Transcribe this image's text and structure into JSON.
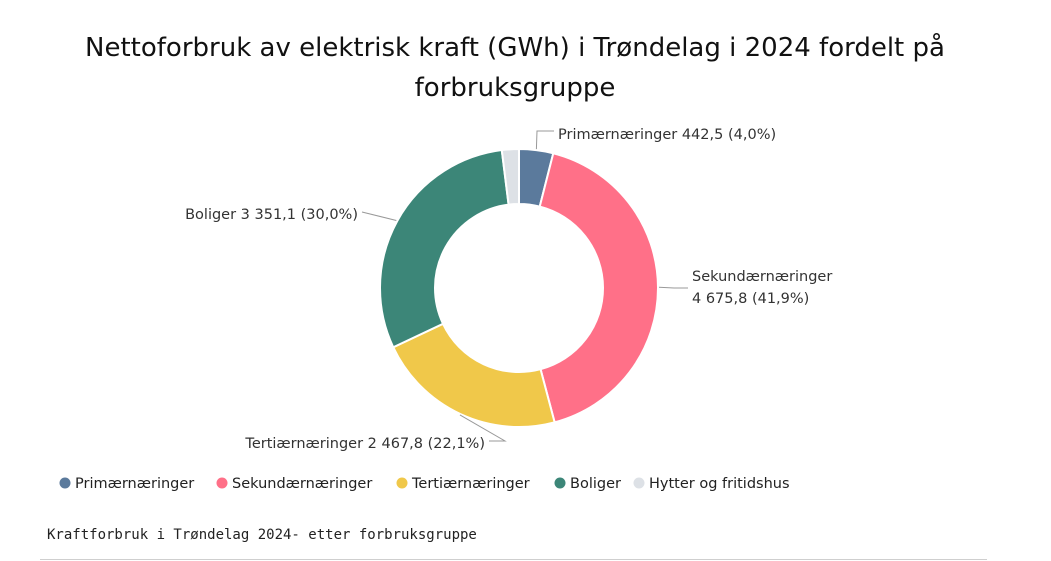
{
  "chart_data": {
    "type": "pie",
    "donut": true,
    "title": "Nettoforbruk av elektrisk kraft (GWh) i Trøndelag i 2024 fordelt på forbruksgruppe",
    "categories": [
      "Primærnæringer",
      "Sekundærnæringer",
      "Tertiærnæringer",
      "Boliger",
      "Hytter og fritidshus"
    ],
    "values": [
      442.5,
      4675.8,
      2467.8,
      3351.1,
      220.4
    ],
    "percentages": [
      4.0,
      41.9,
      22.1,
      30.0,
      2.0
    ],
    "colors": [
      "#5b7a9c",
      "#ff7088",
      "#f0c84a",
      "#3c8678",
      "#dde1e6"
    ],
    "slice_labels": [
      [
        "Primærnæringer 442,5 (4,0%)"
      ],
      [
        "Sekundærnæringer",
        "4 675,8 (41,9%)"
      ],
      [
        "Tertiærnæringer 2 467,8 (22,1%)"
      ],
      [
        "Boliger 3 351,1 (30,0%)"
      ],
      []
    ],
    "legend_position": "bottom-left"
  },
  "caption": "Kraftforbruk i Trøndelag 2024- etter forbruksgruppe"
}
